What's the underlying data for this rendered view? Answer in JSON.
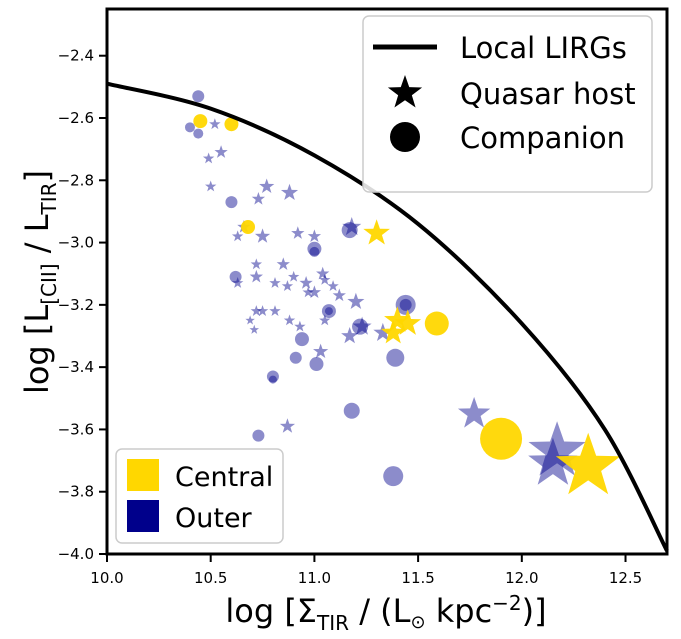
{
  "chart_data": {
    "type": "scatter",
    "title": "",
    "xlim": [
      10.0,
      12.7
    ],
    "ylim": [
      -4.0,
      -2.25
    ],
    "x_ticks": [
      10.0,
      10.5,
      11.0,
      11.5,
      12.0,
      12.5
    ],
    "x_tick_labels": [
      "10.0",
      "10.5",
      "11.0",
      "11.5",
      "12.0",
      "12.5"
    ],
    "y_ticks": [
      -4.0,
      -3.8,
      -3.6,
      -3.4,
      -3.2,
      -3.0,
      -2.8,
      -2.6,
      -2.4
    ],
    "y_tick_labels": [
      "−4.0",
      "−3.8",
      "−3.6",
      "−3.4",
      "−3.2",
      "−3.0",
      "−2.8",
      "−2.6",
      "−2.4"
    ],
    "xlabel": {
      "pre": "log [Σ",
      "sub": "TIR",
      "post": " / (L",
      "sun": "⊙",
      "mid": " kpc",
      "sup": "−2",
      "end": ")]"
    },
    "ylabel": {
      "pre": "log [L",
      "sub": "[CII]",
      "mid": " / L",
      "sub2": "TIR",
      "post": "]"
    },
    "grid": false,
    "colors": {
      "central": "#FFD700",
      "outer": "#00008B",
      "outer_alpha": 0.45,
      "line": "#000000"
    },
    "legend_top": {
      "placement": "upper-right",
      "entries": [
        {
          "marker": "line",
          "label": "Local LIRGs"
        },
        {
          "marker": "star",
          "label": "Quasar host"
        },
        {
          "marker": "circle",
          "label": "Companion"
        }
      ]
    },
    "legend_bottom": {
      "placement": "lower-left",
      "entries": [
        {
          "color": "#FFD700",
          "label": "Central"
        },
        {
          "color": "#00008B",
          "label": "Outer"
        }
      ]
    },
    "local_lirgs_curve": [
      [
        10.0,
        -2.49
      ],
      [
        10.5,
        -2.57
      ],
      [
        11.0,
        -2.72
      ],
      [
        11.5,
        -2.94
      ],
      [
        12.0,
        -3.26
      ],
      [
        12.4,
        -3.6
      ],
      [
        12.7,
        -3.99
      ]
    ],
    "series": [
      {
        "name": "Central",
        "points": [
          {
            "x": 10.45,
            "y": -2.61,
            "marker": "circle",
            "size": 7
          },
          {
            "x": 10.6,
            "y": -2.62,
            "marker": "circle",
            "size": 7
          },
          {
            "x": 10.68,
            "y": -2.95,
            "marker": "circle",
            "size": 7
          },
          {
            "x": 11.3,
            "y": -2.97,
            "marker": "star",
            "size": 14
          },
          {
            "x": 11.4,
            "y": -3.25,
            "marker": "star",
            "size": 14
          },
          {
            "x": 11.45,
            "y": -3.26,
            "marker": "star",
            "size": 14
          },
          {
            "x": 11.38,
            "y": -3.29,
            "marker": "star",
            "size": 13
          },
          {
            "x": 11.59,
            "y": -3.26,
            "marker": "circle",
            "size": 12
          },
          {
            "x": 11.9,
            "y": -3.63,
            "marker": "circle",
            "size": 21
          },
          {
            "x": 12.32,
            "y": -3.72,
            "marker": "star",
            "size": 34
          }
        ]
      },
      {
        "name": "Outer",
        "points": [
          {
            "x": 10.44,
            "y": -2.53,
            "marker": "circle",
            "size": 6
          },
          {
            "x": 10.4,
            "y": -2.63,
            "marker": "circle",
            "size": 5
          },
          {
            "x": 10.44,
            "y": -2.65,
            "marker": "circle",
            "size": 5
          },
          {
            "x": 10.52,
            "y": -2.62,
            "marker": "star",
            "size": 6
          },
          {
            "x": 10.55,
            "y": -2.71,
            "marker": "star",
            "size": 7
          },
          {
            "x": 10.49,
            "y": -2.73,
            "marker": "star",
            "size": 6
          },
          {
            "x": 10.5,
            "y": -2.82,
            "marker": "star",
            "size": 6
          },
          {
            "x": 10.6,
            "y": -2.87,
            "marker": "circle",
            "size": 6
          },
          {
            "x": 10.77,
            "y": -2.82,
            "marker": "star",
            "size": 8
          },
          {
            "x": 10.73,
            "y": -2.86,
            "marker": "star",
            "size": 7
          },
          {
            "x": 10.88,
            "y": -2.84,
            "marker": "star",
            "size": 9
          },
          {
            "x": 10.66,
            "y": -2.95,
            "marker": "star",
            "size": 7
          },
          {
            "x": 10.63,
            "y": -2.98,
            "marker": "star",
            "size": 6
          },
          {
            "x": 10.75,
            "y": -2.98,
            "marker": "star",
            "size": 8
          },
          {
            "x": 10.92,
            "y": -2.97,
            "marker": "star",
            "size": 7
          },
          {
            "x": 11.0,
            "y": -3.02,
            "marker": "circle",
            "size": 7
          },
          {
            "x": 11.0,
            "y": -3.03,
            "marker": "circle",
            "size": 5
          },
          {
            "x": 11.17,
            "y": -2.96,
            "marker": "circle",
            "size": 8
          },
          {
            "x": 11.18,
            "y": -2.95,
            "marker": "star",
            "size": 10
          },
          {
            "x": 11.0,
            "y": -2.98,
            "marker": "star",
            "size": 7
          },
          {
            "x": 10.62,
            "y": -3.11,
            "marker": "circle",
            "size": 6
          },
          {
            "x": 10.63,
            "y": -3.13,
            "marker": "star",
            "size": 6
          },
          {
            "x": 10.72,
            "y": -3.07,
            "marker": "star",
            "size": 6
          },
          {
            "x": 10.72,
            "y": -3.11,
            "marker": "star",
            "size": 7
          },
          {
            "x": 10.81,
            "y": -3.13,
            "marker": "star",
            "size": 6
          },
          {
            "x": 10.85,
            "y": -3.07,
            "marker": "star",
            "size": 7
          },
          {
            "x": 10.9,
            "y": -3.11,
            "marker": "star",
            "size": 6
          },
          {
            "x": 10.96,
            "y": -3.13,
            "marker": "star",
            "size": 7
          },
          {
            "x": 11.04,
            "y": -3.1,
            "marker": "star",
            "size": 7
          },
          {
            "x": 11.05,
            "y": -3.12,
            "marker": "star",
            "size": 6
          },
          {
            "x": 11.09,
            "y": -3.14,
            "marker": "star",
            "size": 6
          },
          {
            "x": 10.87,
            "y": -3.14,
            "marker": "star",
            "size": 6
          },
          {
            "x": 10.97,
            "y": -3.16,
            "marker": "star",
            "size": 6
          },
          {
            "x": 11.0,
            "y": -3.16,
            "marker": "star",
            "size": 7
          },
          {
            "x": 11.12,
            "y": -3.17,
            "marker": "star",
            "size": 7
          },
          {
            "x": 11.07,
            "y": -3.22,
            "marker": "circle",
            "size": 7
          },
          {
            "x": 11.07,
            "y": -3.22,
            "marker": "circle",
            "size": 4
          },
          {
            "x": 11.2,
            "y": -3.19,
            "marker": "star",
            "size": 9
          },
          {
            "x": 11.05,
            "y": -3.25,
            "marker": "star",
            "size": 6
          },
          {
            "x": 10.72,
            "y": -3.22,
            "marker": "star",
            "size": 6
          },
          {
            "x": 10.75,
            "y": -3.22,
            "marker": "star",
            "size": 6
          },
          {
            "x": 10.81,
            "y": -3.22,
            "marker": "star",
            "size": 6
          },
          {
            "x": 10.69,
            "y": -3.25,
            "marker": "star",
            "size": 5
          },
          {
            "x": 10.88,
            "y": -3.25,
            "marker": "star",
            "size": 6
          },
          {
            "x": 10.93,
            "y": -3.27,
            "marker": "star",
            "size": 6
          },
          {
            "x": 10.71,
            "y": -3.28,
            "marker": "star",
            "size": 5
          },
          {
            "x": 10.94,
            "y": -3.31,
            "marker": "circle",
            "size": 7
          },
          {
            "x": 10.91,
            "y": -3.37,
            "marker": "circle",
            "size": 6
          },
          {
            "x": 11.03,
            "y": -3.35,
            "marker": "star",
            "size": 8
          },
          {
            "x": 11.01,
            "y": -3.39,
            "marker": "circle",
            "size": 7
          },
          {
            "x": 11.23,
            "y": -3.27,
            "marker": "star",
            "size": 10
          },
          {
            "x": 11.17,
            "y": -3.3,
            "marker": "star",
            "size": 9
          },
          {
            "x": 11.22,
            "y": -3.27,
            "marker": "circle",
            "size": 8
          },
          {
            "x": 11.33,
            "y": -3.29,
            "marker": "star",
            "size": 10
          },
          {
            "x": 11.44,
            "y": -3.2,
            "marker": "circle",
            "size": 10
          },
          {
            "x": 11.44,
            "y": -3.2,
            "marker": "circle",
            "size": 6
          },
          {
            "x": 11.39,
            "y": -3.37,
            "marker": "circle",
            "size": 9
          },
          {
            "x": 10.8,
            "y": -3.43,
            "marker": "circle",
            "size": 6
          },
          {
            "x": 10.8,
            "y": -3.44,
            "marker": "circle",
            "size": 4
          },
          {
            "x": 11.18,
            "y": -3.54,
            "marker": "circle",
            "size": 8
          },
          {
            "x": 10.87,
            "y": -3.59,
            "marker": "star",
            "size": 8
          },
          {
            "x": 10.73,
            "y": -3.62,
            "marker": "circle",
            "size": 6
          },
          {
            "x": 11.38,
            "y": -3.75,
            "marker": "circle",
            "size": 10
          },
          {
            "x": 11.77,
            "y": -3.55,
            "marker": "star",
            "size": 17
          },
          {
            "x": 12.17,
            "y": -3.67,
            "marker": "star",
            "size": 30
          },
          {
            "x": 12.15,
            "y": -3.71,
            "marker": "star",
            "size": 26
          }
        ]
      }
    ]
  }
}
